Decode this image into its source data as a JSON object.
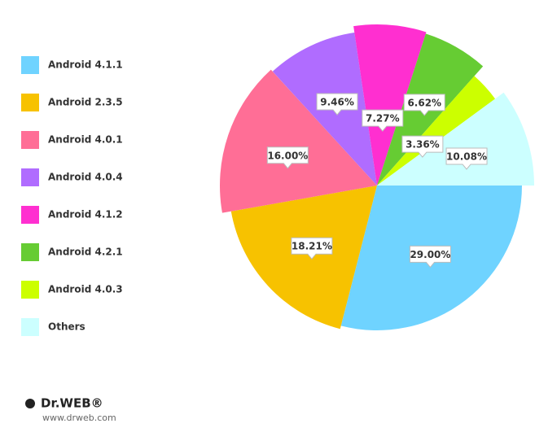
{
  "chart_data": {
    "type": "pie",
    "categories": [
      "Android 4.1.1",
      "Android 2.3.5",
      "Android 4.0.1",
      "Android 4.0.4",
      "Android 4.1.2",
      "Android 4.2.1",
      "Android 4.0.3",
      "Others"
    ],
    "values": [
      29.0,
      18.21,
      16.0,
      9.46,
      7.27,
      6.62,
      3.36,
      10.08
    ],
    "value_labels": [
      "29.00%",
      "18.21%",
      "16.00%",
      "9.46%",
      "7.27%",
      "6.62%",
      "3.36%",
      "10.08%"
    ],
    "colors": [
      "#6fd3ff",
      "#f7c200",
      "#ff6e96",
      "#b06cff",
      "#ff2fd0",
      "#66cc33",
      "#ccff00",
      "#ccffff"
    ],
    "legend": "left"
  },
  "footer": {
    "brand": "Dr.WEB®",
    "url": "www.drweb.com"
  }
}
